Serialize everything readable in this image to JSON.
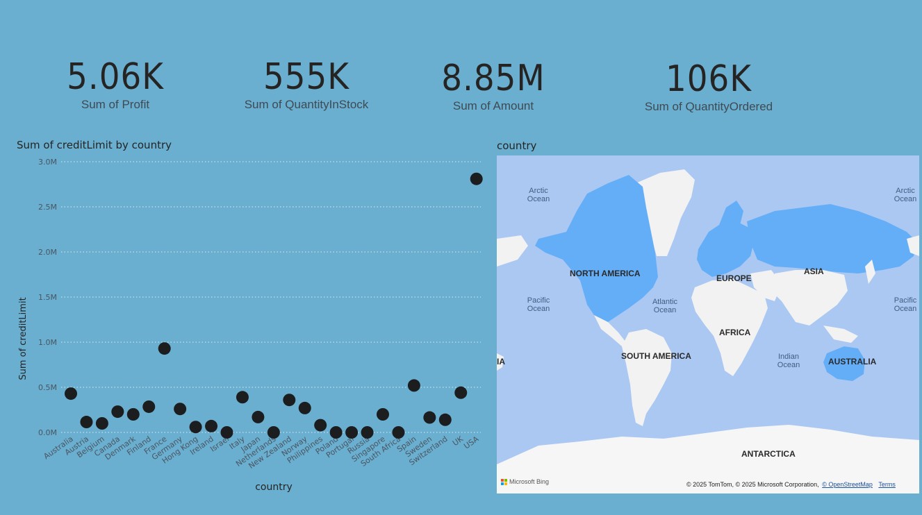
{
  "cards": [
    {
      "value": "5.06K",
      "label": "Sum of Profit"
    },
    {
      "value": "555K",
      "label": "Sum of QuantityInStock"
    },
    {
      "value": "8.85M",
      "label": "Sum of Amount"
    },
    {
      "value": "106K",
      "label": "Sum of QuantityOrdered"
    }
  ],
  "scatter_title": "Sum of creditLimit by country",
  "map_title": "country",
  "map": {
    "oceans": [
      "Arctic",
      "Ocean",
      "Pacific",
      "Ocean",
      "Atlantic",
      "Ocean",
      "Indian",
      "Ocean"
    ],
    "continents": {
      "north_america": "NORTH AMERICA",
      "south_america": "SOUTH AMERICA",
      "europe": "EUROPE",
      "asia": "ASIA",
      "africa": "AFRICA",
      "australia": "AUSTRALIA",
      "antarctica": "ANTARCTICA",
      "asia_edge": "IA"
    },
    "bing_label": "Microsoft Bing",
    "attribution": "© 2025 TomTom, © 2025 Microsoft Corporation,",
    "osm_link": "© OpenStreetMap",
    "terms_link": "Terms",
    "colors": {
      "land": "#f2f2f2",
      "highlight": "#64aef8",
      "water": "#abc8f2"
    }
  },
  "colors": {
    "background": "#6aafd0",
    "marker": "#1b1d1f",
    "gridline": "#ffffff"
  },
  "chart_data": {
    "type": "scatter",
    "title": "Sum of creditLimit by country",
    "xlabel": "country",
    "ylabel": "Sum of creditLimit",
    "ylim": [
      0,
      3000000
    ],
    "yticks": [
      0,
      500000,
      1000000,
      1500000,
      2000000,
      2500000,
      3000000
    ],
    "ytick_labels": [
      "0.0M",
      "0.5M",
      "1.0M",
      "1.5M",
      "2.0M",
      "2.5M",
      "3.0M"
    ],
    "categories": [
      "Australia",
      "Austria",
      "Belgium",
      "Canada",
      "Denmark",
      "Finland",
      "France",
      "Germany",
      "Hong Kong",
      "Ireland",
      "Israel",
      "Italy",
      "Japan",
      "Netherlands",
      "New Zealand",
      "Norway",
      "Philippines",
      "Poland",
      "Portugal",
      "Russia",
      "Singapore",
      "South Africa",
      "Spain",
      "Sweden",
      "Switzerland",
      "UK",
      "USA"
    ],
    "values": [
      430000,
      115000,
      100000,
      230000,
      200000,
      285000,
      930000,
      260000,
      60000,
      70000,
      0,
      390000,
      170000,
      0,
      360000,
      270000,
      80000,
      0,
      0,
      0,
      200000,
      0,
      520000,
      165000,
      140000,
      440000,
      2810000
    ]
  }
}
